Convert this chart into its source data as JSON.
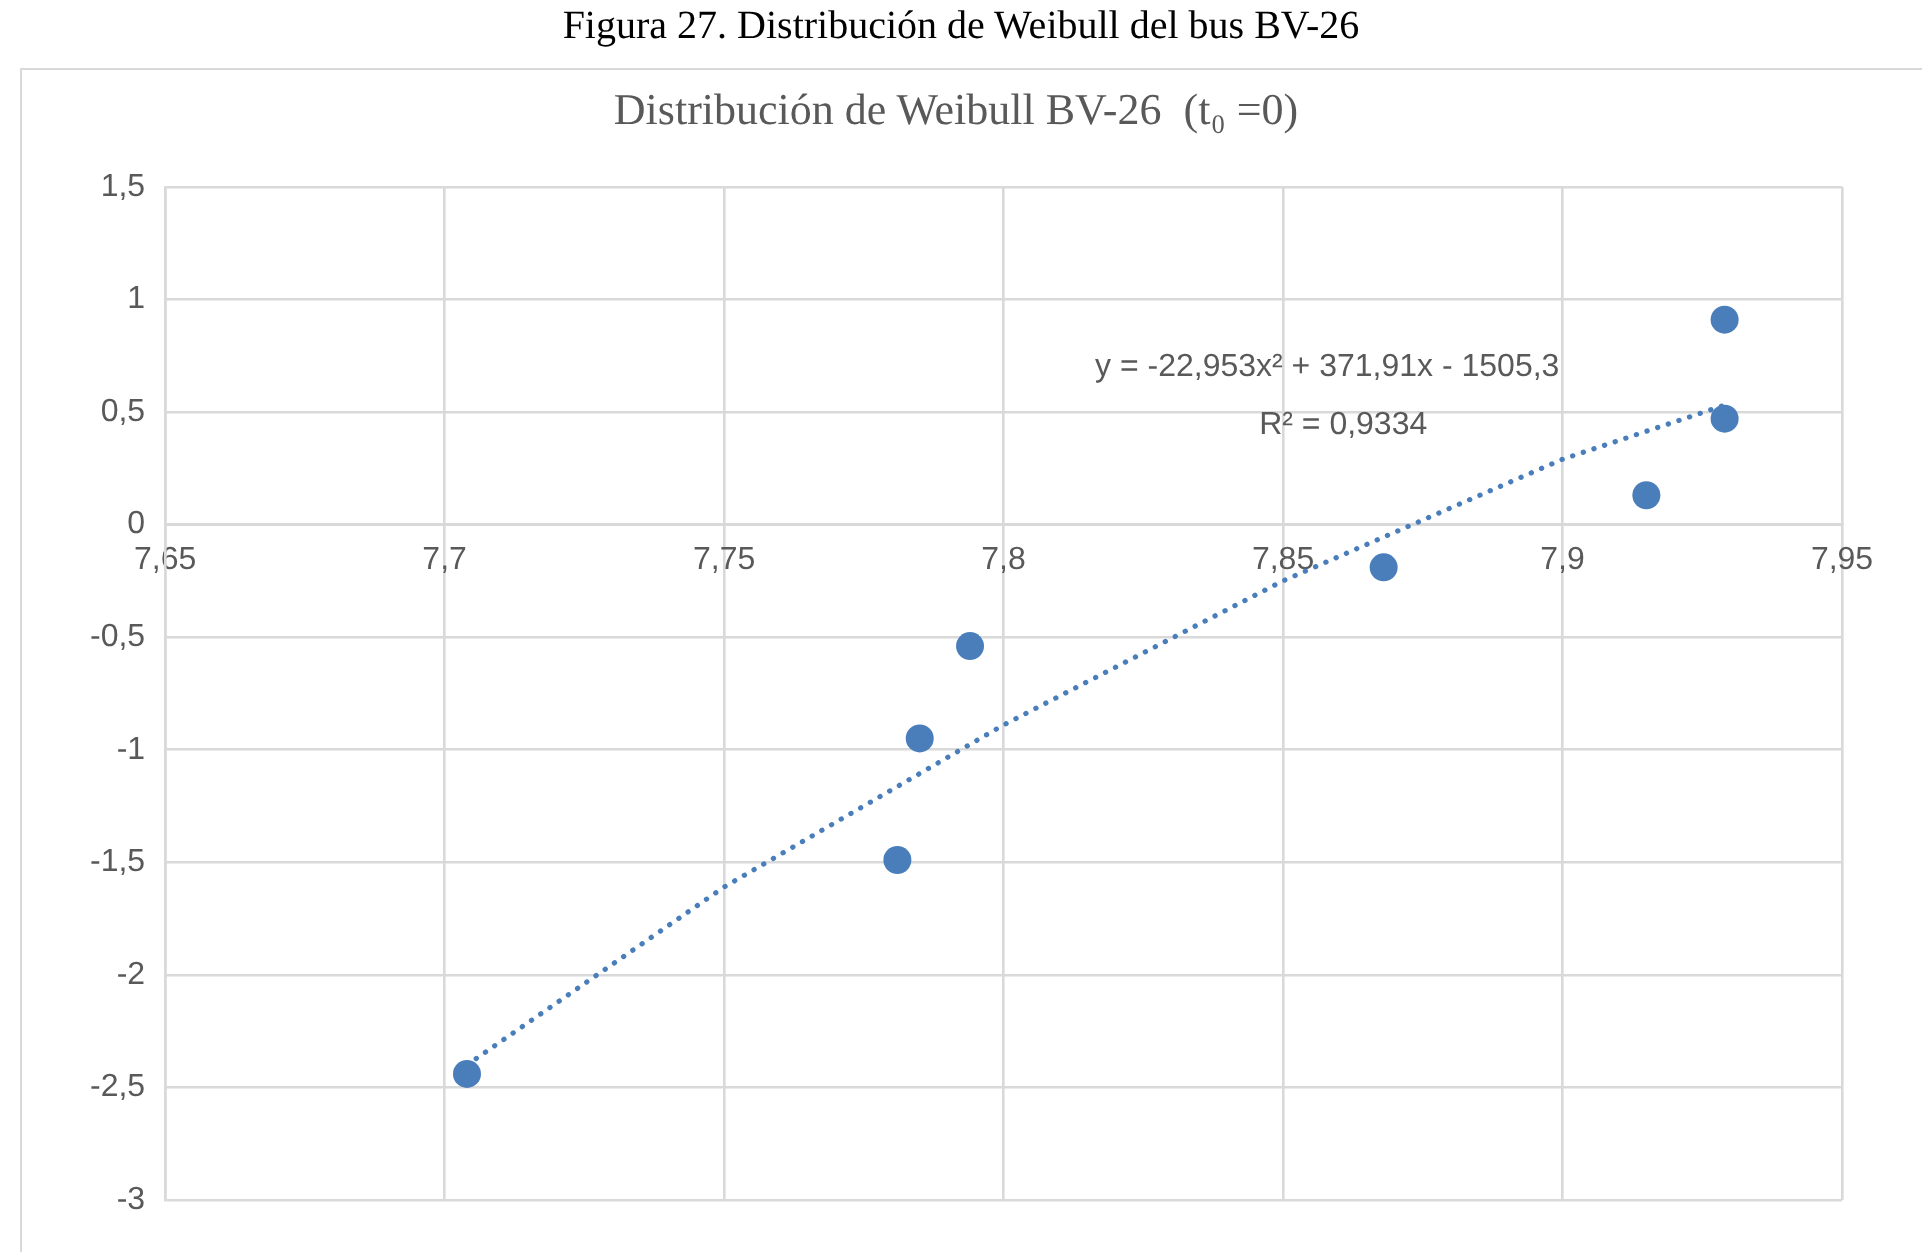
{
  "chart_data": {
    "type": "scatter",
    "title": "Figura 27. Distribución de Weibull del bus BV-26",
    "subtitle": "Distribución de Weibull BV-26  (t₀ =0)",
    "series": [
      {
        "type": "scatter",
        "color": "#4a7ebb",
        "marker": "circle",
        "x": [
          7.704,
          7.781,
          7.785,
          7.794,
          7.868,
          7.915,
          7.929,
          7.929
        ],
        "values": [
          -2.44,
          -1.49,
          -0.95,
          -0.54,
          -0.19,
          0.13,
          0.91,
          0.47
        ]
      },
      {
        "type": "line",
        "color": "#4a7ebb",
        "marker": "none",
        "line_style": "dotted",
        "x": [
          7.704,
          7.75,
          7.8,
          7.85,
          7.9,
          7.929
        ],
        "values": [
          -2.4,
          -1.61,
          -0.89,
          -0.25,
          0.29,
          0.53
        ]
      }
    ],
    "xlim": [
      7.65,
      7.95
    ],
    "xticks": [
      {
        "value": 7.65,
        "label": "7,65"
      },
      {
        "value": 7.7,
        "label": "7,7"
      },
      {
        "value": 7.75,
        "label": "7,75"
      },
      {
        "value": 7.8,
        "label": "7,8"
      },
      {
        "value": 7.85,
        "label": "7,85"
      },
      {
        "value": 7.9,
        "label": "7,9"
      },
      {
        "value": 7.95,
        "label": "7,95"
      }
    ],
    "ylim": [
      -3,
      1.5
    ],
    "yticks": [
      -3,
      {
        "value": -2.5,
        "label": "-2,5"
      },
      -2,
      {
        "value": -1.5,
        "label": "-1,5"
      },
      -1,
      {
        "value": -0.5,
        "label": "-0,5"
      },
      0,
      {
        "value": 0.5,
        "label": "0,5"
      },
      1,
      {
        "value": 1.5,
        "label": "1,5"
      }
    ],
    "grid": true,
    "legend": false,
    "annotations": [
      "y = -22,953x² + 371,91x - 1505,3",
      "R² = 0,9334"
    ]
  }
}
